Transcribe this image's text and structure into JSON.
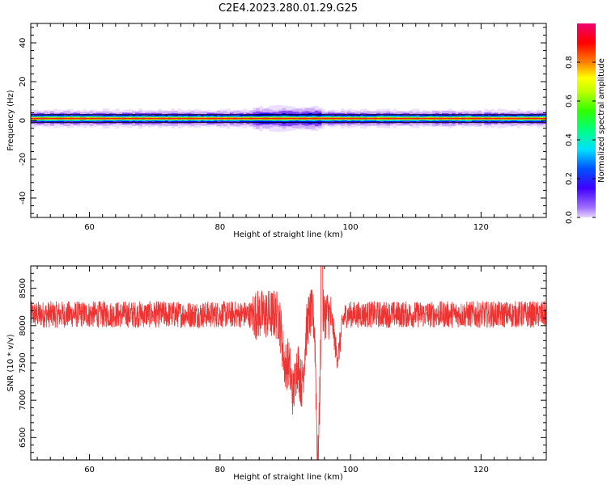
{
  "title": "C2E4.2023.280.01.29.G25",
  "chart_data": [
    {
      "type": "heatmap",
      "xlabel": "Height of straight line (km)",
      "ylabel": "Frequency (Hz)",
      "xlim": [
        51,
        130
      ],
      "ylim": [
        -50,
        50
      ],
      "x_ticks": [
        60,
        80,
        100,
        120
      ],
      "y_ticks": [
        -40,
        -20,
        0,
        20,
        40
      ],
      "colorbar": {
        "label": "Normalized spectral amplitude",
        "range": [
          0,
          1
        ],
        "ticks": [
          "0.0",
          "0.2",
          "0.4",
          "0.6",
          "0.8"
        ],
        "colormap": "hsv-rainbow"
      },
      "band": {
        "center_frequency": 1,
        "half_width_upper": 2,
        "half_width_lower": 2,
        "broadened_region": [
          85,
          95
        ]
      }
    },
    {
      "type": "line",
      "xlabel": "Height of straight line (km)",
      "ylabel": "SNR (10 * v/v)",
      "xlim": [
        51,
        130
      ],
      "ylim": [
        6200,
        8800
      ],
      "x_ticks": [
        60,
        80,
        100,
        120
      ],
      "y_ticks": [
        6500,
        7000,
        7500,
        8000,
        8500
      ],
      "series": [
        {
          "color": "#ee3333",
          "mean": 8150,
          "noise_amplitude": 180,
          "features": [
            {
              "x": 90.0,
              "y": 7500
            },
            {
              "x": 91.2,
              "y": 7150
            },
            {
              "x": 92.5,
              "y": 7250
            },
            {
              "x": 95.0,
              "y": 6220
            },
            {
              "x": 98.0,
              "y": 7600
            }
          ]
        }
      ]
    }
  ]
}
